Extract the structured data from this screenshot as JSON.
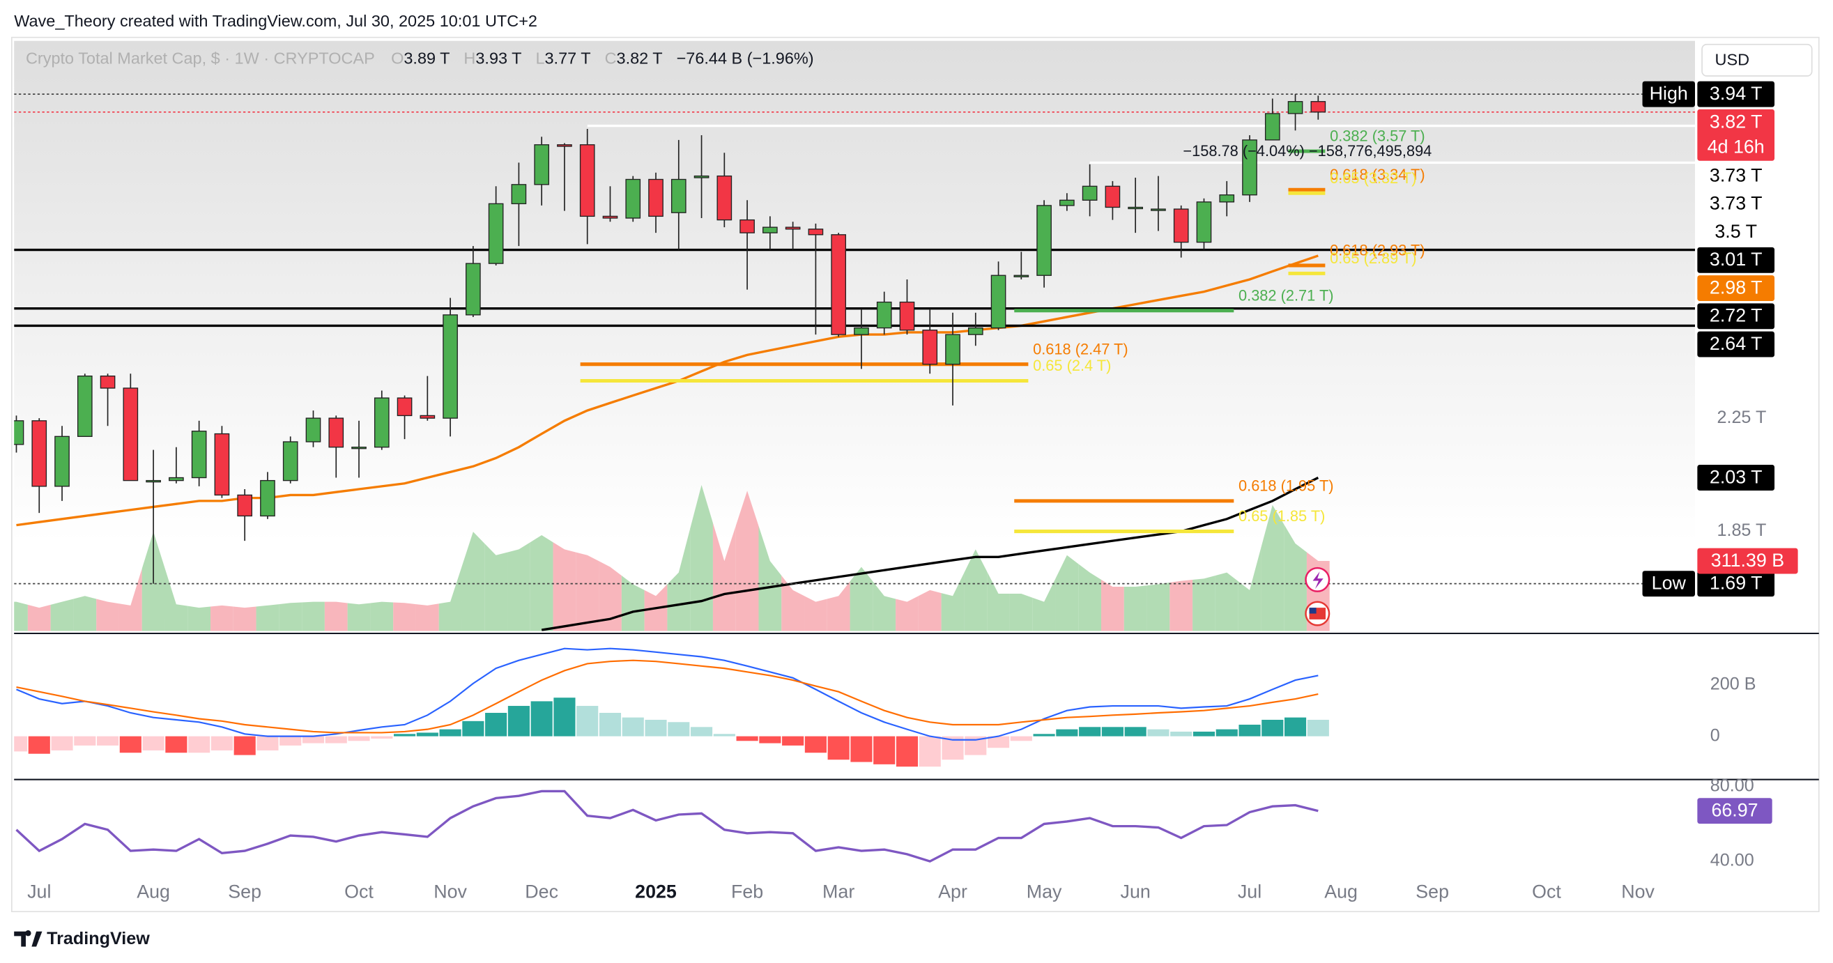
{
  "header": {
    "attribution": "Wave_Theory created with TradingView.com, Jul 30, 2025 10:01 UTC+2",
    "footer": "TradingView"
  },
  "chart_data": {
    "type": "candlestick",
    "title": "Crypto Total Market Cap, $ · 1W · CRYPTOCAP",
    "ohlc_legend": [
      {
        "key": "O",
        "value": "3.89 T"
      },
      {
        "key": "H",
        "value": "3.93 T"
      },
      {
        "key": "L",
        "value": "3.77 T"
      },
      {
        "key": "C",
        "value": "3.82 T"
      }
    ],
    "change": "−76.44 B (−1.96%)",
    "currency": "USD",
    "log_scale": true,
    "up_color": "#4caf50",
    "down_color": "#f23645",
    "xlim": [
      -0.1,
      73.5
    ],
    "ylim": [
      1.557,
      4.32
    ],
    "xticks": [
      {
        "value": 1,
        "label": "Jul"
      },
      {
        "value": 6,
        "label": "Aug"
      },
      {
        "value": 10,
        "label": "Sep"
      },
      {
        "value": 15,
        "label": "Oct"
      },
      {
        "value": 19,
        "label": "Nov"
      },
      {
        "value": 23,
        "label": "Dec"
      },
      {
        "value": 28,
        "label": "2025"
      },
      {
        "value": 32,
        "label": "Feb"
      },
      {
        "value": 36,
        "label": "Mar"
      },
      {
        "value": 41,
        "label": "Apr"
      },
      {
        "value": 45,
        "label": "May"
      },
      {
        "value": 49,
        "label": "Jun"
      },
      {
        "value": 54,
        "label": "Jul"
      },
      {
        "value": 58,
        "label": "Aug"
      },
      {
        "value": 62,
        "label": "Sep"
      },
      {
        "value": 67,
        "label": "Oct"
      },
      {
        "value": 71,
        "label": "Nov"
      }
    ],
    "yticks": [
      {
        "value": 2.25,
        "label": "2.25 T"
      },
      {
        "value": 1.85,
        "label": "1.85 T"
      }
    ],
    "open": [
      2.15,
      2.24,
      2.0,
      2.18,
      2.42,
      2.37,
      2.02,
      2.02,
      2.03,
      2.19,
      1.97,
      1.9,
      2.02,
      2.16,
      2.25,
      2.14,
      2.14,
      2.33,
      2.26,
      2.25,
      2.69,
      2.94,
      3.26,
      3.37,
      3.61,
      3.61,
      3.19,
      3.18,
      3.4,
      3.21,
      3.41,
      3.42,
      3.17,
      3.1,
      3.13,
      3.12,
      3.09,
      2.6,
      2.63,
      2.75,
      2.62,
      2.47,
      2.6,
      2.63,
      2.88,
      2.88,
      3.25,
      3.28,
      3.36,
      3.24,
      3.23,
      3.23,
      3.05,
      3.27,
      3.31,
      3.64,
      3.81,
      3.89
    ],
    "high": [
      2.26,
      2.25,
      2.22,
      2.43,
      2.43,
      2.43,
      2.13,
      2.14,
      2.24,
      2.22,
      1.99,
      2.05,
      2.18,
      2.28,
      2.26,
      2.24,
      2.36,
      2.34,
      2.42,
      2.77,
      3.03,
      3.36,
      3.5,
      3.66,
      3.62,
      3.71,
      3.36,
      3.42,
      3.44,
      3.64,
      3.67,
      3.56,
      3.28,
      3.19,
      3.16,
      3.15,
      3.1,
      2.72,
      2.8,
      2.86,
      2.72,
      2.7,
      2.7,
      2.95,
      3.0,
      3.28,
      3.32,
      3.49,
      3.39,
      3.41,
      3.42,
      3.25,
      3.29,
      3.39,
      3.67,
      3.91,
      3.94,
      3.93
    ],
    "low": [
      2.12,
      1.91,
      1.95,
      2.18,
      2.22,
      2.02,
      1.69,
      2.01,
      2.0,
      1.96,
      1.82,
      1.89,
      2.01,
      2.14,
      2.03,
      2.03,
      2.13,
      2.17,
      2.24,
      2.18,
      2.68,
      2.93,
      3.03,
      3.25,
      3.22,
      3.04,
      3.16,
      3.16,
      3.1,
      3.01,
      3.18,
      3.13,
      2.81,
      3.01,
      3.01,
      2.6,
      2.59,
      2.45,
      2.6,
      2.6,
      2.43,
      2.3,
      2.55,
      2.62,
      2.86,
      2.82,
      3.22,
      3.19,
      3.17,
      3.1,
      3.11,
      2.97,
      3.01,
      3.19,
      3.27,
      3.64,
      3.7,
      3.77
    ],
    "close": [
      2.24,
      2.0,
      2.18,
      2.42,
      2.37,
      2.02,
      2.02,
      2.03,
      2.2,
      1.97,
      1.9,
      2.02,
      2.16,
      2.25,
      2.14,
      2.14,
      2.33,
      2.26,
      2.25,
      2.69,
      2.94,
      3.26,
      3.37,
      3.61,
      3.6,
      3.19,
      3.18,
      3.4,
      3.19,
      3.4,
      3.42,
      3.17,
      3.1,
      3.13,
      3.12,
      3.09,
      2.6,
      2.63,
      2.75,
      2.62,
      2.47,
      2.6,
      2.63,
      2.88,
      2.88,
      3.25,
      3.28,
      3.36,
      3.24,
      3.24,
      3.23,
      3.05,
      3.27,
      3.31,
      3.64,
      3.81,
      3.89,
      3.82
    ],
    "ma_lines": [
      {
        "color": "#f57c00",
        "values": [
          1.87,
          1.88,
          1.89,
          1.9,
          1.91,
          1.92,
          1.93,
          1.94,
          1.95,
          1.95,
          1.96,
          1.96,
          1.97,
          1.97,
          1.98,
          1.99,
          2.0,
          2.01,
          2.03,
          2.05,
          2.07,
          2.1,
          2.14,
          2.19,
          2.24,
          2.28,
          2.31,
          2.34,
          2.37,
          2.4,
          2.44,
          2.48,
          2.51,
          2.53,
          2.55,
          2.57,
          2.59,
          2.6,
          2.6,
          2.61,
          2.61,
          2.61,
          2.62,
          2.63,
          2.64,
          2.66,
          2.68,
          2.7,
          2.72,
          2.74,
          2.76,
          2.78,
          2.8,
          2.83,
          2.86,
          2.9,
          2.94,
          2.98
        ]
      },
      {
        "color": "#000000",
        "values": [
          null,
          null,
          null,
          null,
          null,
          null,
          null,
          null,
          null,
          null,
          null,
          null,
          null,
          null,
          null,
          null,
          null,
          null,
          null,
          null,
          null,
          null,
          null,
          1.56,
          1.57,
          1.58,
          1.59,
          1.61,
          1.62,
          1.63,
          1.64,
          1.66,
          1.67,
          1.68,
          1.69,
          1.7,
          1.71,
          1.72,
          1.73,
          1.74,
          1.75,
          1.76,
          1.77,
          1.77,
          1.78,
          1.79,
          1.8,
          1.81,
          1.82,
          1.83,
          1.84,
          1.85,
          1.87,
          1.89,
          1.92,
          1.95,
          1.99,
          2.03
        ]
      }
    ],
    "price_tags": [
      {
        "label": "3.94 T",
        "value": 3.94,
        "title": "High",
        "bg": "#000000",
        "fg": "#ffffff",
        "line": "dotted",
        "line_color": "#444444"
      },
      {
        "label": "3.82 T",
        "sub": "4d 16h",
        "value": 3.82,
        "bg": "#f23645",
        "fg": "#ffffff",
        "line": "dotted",
        "line_color": "#f23645"
      },
      {
        "label": "3.73 T",
        "value": 3.73,
        "bg": "#ffffff",
        "fg": "#000000",
        "line": "solid",
        "line_color": "#ffffff",
        "line_from": 25
      },
      {
        "label": "3.73 T",
        "value": 3.73,
        "bg": "#ffffff",
        "fg": "#000000"
      },
      {
        "label": "3.5 T",
        "value": 3.5,
        "bg": "#ffffff",
        "fg": "#000000",
        "line": "solid",
        "line_color": "#ffffff",
        "line_from": 47
      },
      {
        "label": "3.01 T",
        "value": 3.01,
        "bg": "#000000",
        "fg": "#ffffff",
        "line": "solid",
        "line_color": "#000000"
      },
      {
        "label": "2.98 T",
        "value": 2.98,
        "bg": "#f57c00",
        "fg": "#ffffff"
      },
      {
        "label": "2.72 T",
        "value": 2.72,
        "bg": "#000000",
        "fg": "#ffffff",
        "line": "solid",
        "line_color": "#000000"
      },
      {
        "label": "2.64 T",
        "value": 2.64,
        "bg": "#000000",
        "fg": "#ffffff",
        "line": "solid",
        "line_color": "#000000"
      },
      {
        "label": "2.03 T",
        "value": 2.03,
        "bg": "#000000",
        "fg": "#ffffff"
      },
      {
        "label": "1.69 T",
        "value": 1.69,
        "title": "Low",
        "bg": "#000000",
        "fg": "#ffffff",
        "line": "dotted",
        "line_color": "#444444"
      }
    ],
    "fib_levels": [
      {
        "label": "0.382 (3.57 T)",
        "value": 3.57,
        "color": "#4caf50",
        "from": 56,
        "to": 57
      },
      {
        "label": "0.618 (3.34 T)",
        "value": 3.34,
        "color": "#f57c00",
        "from": 56,
        "to": 57
      },
      {
        "label": "0.65 (3.32 T)",
        "value": 3.32,
        "color": "#f5e63a",
        "from": 56,
        "to": 57
      },
      {
        "label": "0.618 (2.93 T)",
        "value": 2.93,
        "color": "#f57c00",
        "from": 56,
        "to": 57
      },
      {
        "label": "0.65 (2.89 T)",
        "value": 2.89,
        "color": "#f5e63a",
        "from": 56,
        "to": 57
      },
      {
        "label": "0.382 (2.71 T)",
        "value": 2.71,
        "color": "#4caf50",
        "from": 44,
        "to": 53
      },
      {
        "label": "0.618 (2.47 T)",
        "value": 2.47,
        "color": "#f57c00",
        "from": 25,
        "to": 44
      },
      {
        "label": "0.65 (2.4 T)",
        "value": 2.4,
        "color": "#f5e63a",
        "from": 25,
        "to": 44
      },
      {
        "label": "0.618 (1.95 T)",
        "value": 1.95,
        "color": "#f57c00",
        "from": 44,
        "to": 53
      },
      {
        "label": "0.65 (1.85 T)",
        "value": 1.85,
        "color": "#f5e63a",
        "from": 44,
        "to": 53
      }
    ],
    "measure_annotation": "−158.78 (−4.04%) −158,776,495,894",
    "volume": {
      "values": [
        130,
        104,
        130,
        156,
        130,
        114,
        441,
        119,
        104,
        114,
        104,
        114,
        125,
        130,
        130,
        119,
        130,
        125,
        114,
        130,
        441,
        337,
        363,
        426,
        363,
        337,
        285,
        208,
        156,
        260,
        649,
        311,
        623,
        311,
        182,
        130,
        156,
        285,
        156,
        130,
        182,
        156,
        363,
        166,
        166,
        130,
        337,
        260,
        197,
        197,
        208,
        223,
        233,
        260,
        182,
        560,
        389,
        311.39
      ],
      "vlim": [
        0,
        2621
      ],
      "up_color": "#a5d6a7",
      "down_color": "#f7a9b0",
      "last_label": "311.39 B"
    },
    "macd": {
      "ylim": [
        -159,
        386
      ],
      "yticks": [
        {
          "value": 200,
          "label": "200 B"
        },
        0
      ],
      "histogram": [
        -59,
        -68,
        -55,
        -36,
        -36,
        -64,
        -55,
        -64,
        -64,
        -55,
        -73,
        -55,
        -36,
        -27,
        -27,
        -18,
        -9,
        9,
        14,
        27,
        59,
        91,
        118,
        136,
        150,
        118,
        91,
        73,
        64,
        55,
        36,
        9,
        -18,
        -27,
        -36,
        -64,
        -91,
        -100,
        -109,
        -118,
        -118,
        -91,
        -73,
        -45,
        -18,
        9,
        27,
        36,
        36,
        36,
        27,
        18,
        18,
        27,
        45,
        64,
        73,
        64
      ],
      "macd": [
        182,
        145,
        127,
        136,
        118,
        91,
        73,
        64,
        55,
        36,
        9,
        0,
        0,
        0,
        9,
        23,
        36,
        45,
        82,
        136,
        205,
        264,
        295,
        318,
        341,
        336,
        341,
        336,
        327,
        318,
        309,
        295,
        273,
        250,
        227,
        182,
        136,
        91,
        55,
        27,
        0,
        -14,
        -14,
        0,
        27,
        68,
        100,
        114,
        118,
        118,
        118,
        109,
        114,
        118,
        145,
        182,
        218,
        236
      ],
      "signal": [
        191,
        173,
        155,
        136,
        123,
        109,
        95,
        82,
        68,
        59,
        45,
        36,
        27,
        18,
        14,
        14,
        14,
        18,
        27,
        45,
        82,
        127,
        173,
        218,
        255,
        282,
        291,
        295,
        291,
        282,
        273,
        264,
        250,
        236,
        218,
        195,
        173,
        136,
        100,
        73,
        55,
        45,
        45,
        45,
        55,
        64,
        73,
        77,
        82,
        86,
        91,
        95,
        100,
        109,
        118,
        132,
        145,
        164
      ],
      "macd_color": "#2962ff",
      "signal_color": "#ff6d00"
    },
    "rsi": {
      "ylim": [
        35,
        83.125
      ],
      "yticks": [
        {
          "value": 80,
          "label": "80.00"
        },
        {
          "value": 40,
          "label": "40.00"
        }
      ],
      "values": [
        56.9,
        45.6,
        51.9,
        60,
        56.9,
        45.6,
        46.3,
        45.6,
        51.9,
        44.4,
        45.6,
        49.4,
        53.8,
        53.1,
        50.6,
        53.8,
        55.6,
        54.4,
        53.1,
        63.1,
        69.4,
        73.8,
        75,
        77.5,
        77.5,
        64.4,
        63.1,
        67.5,
        61.9,
        65,
        65.6,
        56.9,
        55,
        55.6,
        55,
        45.6,
        47.5,
        45.6,
        46.3,
        43.8,
        40,
        46.3,
        46.3,
        52.5,
        52.5,
        60,
        61.3,
        63.1,
        58.8,
        58.8,
        58.1,
        52.5,
        58.8,
        59.4,
        66.3,
        69.4,
        70,
        66.97
      ],
      "color": "#7e57c2",
      "last_label": "66.97"
    }
  }
}
